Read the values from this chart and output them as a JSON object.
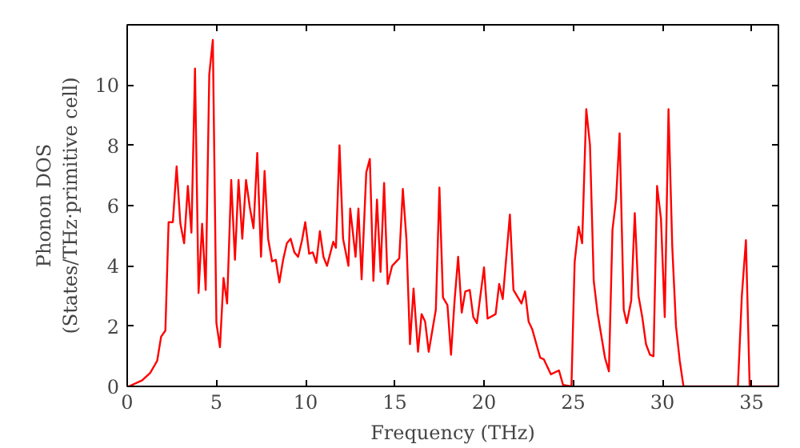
{
  "chart_data": {
    "type": "line",
    "xlabel": "Frequency (THz)",
    "ylabel": "Phonon DOS\n(States/THz·primitive cell)",
    "x": [
      0,
      0.09,
      0.84,
      1.29,
      1.68,
      1.9,
      2.14,
      2.32,
      2.56,
      2.77,
      2.98,
      3.19,
      3.4,
      3.6,
      3.8,
      4.0,
      4.2,
      4.4,
      4.6,
      4.8,
      5.0,
      5.2,
      5.4,
      5.6,
      5.83,
      6.04,
      6.24,
      6.45,
      6.66,
      6.87,
      7.08,
      7.29,
      7.5,
      7.7,
      7.9,
      8.12,
      8.33,
      8.53,
      8.74,
      8.95,
      9.16,
      9.37,
      9.58,
      9.8,
      9.98,
      10.2,
      10.4,
      10.6,
      10.8,
      11.0,
      11.2,
      11.55,
      11.7,
      11.9,
      12.1,
      12.4,
      12.5,
      12.8,
      12.96,
      13.14,
      13.4,
      13.6,
      13.8,
      14.0,
      14.2,
      14.4,
      14.6,
      14.85,
      15.25,
      15.45,
      15.65,
      15.85,
      16.05,
      16.3,
      16.5,
      16.7,
      16.9,
      17.3,
      17.5,
      17.7,
      17.95,
      18.15,
      18.35,
      18.55,
      18.75,
      18.95,
      19.2,
      19.4,
      19.6,
      20.0,
      20.2,
      20.65,
      20.85,
      21.05,
      21.45,
      21.65,
      22.1,
      22.3,
      22.5,
      22.7,
      23.15,
      23.35,
      23.75,
      24.2,
      24.43,
      24.9,
      25.08,
      25.3,
      25.5,
      25.73,
      25.94,
      26.15,
      26.36,
      26.57,
      26.78,
      27.0,
      27.2,
      27.4,
      27.6,
      27.83,
      28.0,
      28.25,
      28.45,
      28.66,
      28.87,
      29.08,
      29.3,
      29.5,
      29.7,
      29.92,
      30.13,
      30.34,
      30.55,
      30.76,
      30.97,
      31.18,
      34.23,
      34.45,
      34.68,
      34.89,
      36.5
    ],
    "series": [
      {
        "color": "#ff0000",
        "values": [
          0,
          0,
          0.2,
          0.45,
          0.85,
          1.65,
          1.85,
          5.45,
          5.45,
          7.3,
          5.4,
          4.75,
          6.65,
          5.1,
          10.55,
          3.1,
          5.4,
          3.2,
          10.35,
          11.5,
          2.1,
          1.3,
          3.6,
          2.75,
          6.85,
          4.2,
          6.85,
          4.9,
          6.85,
          5.95,
          5.25,
          7.75,
          4.3,
          7.15,
          4.9,
          4.15,
          4.2,
          3.45,
          4.2,
          4.75,
          4.9,
          4.45,
          4.3,
          4.85,
          5.45,
          4.4,
          4.45,
          4.1,
          5.15,
          4.3,
          4.0,
          4.8,
          4.6,
          8.0,
          4.9,
          4.0,
          5.9,
          4.3,
          5.9,
          3.55,
          7.1,
          7.55,
          3.5,
          6.2,
          3.8,
          6.75,
          3.4,
          4.0,
          4.25,
          6.55,
          4.9,
          1.4,
          3.25,
          1.15,
          2.4,
          2.15,
          1.15,
          2.55,
          6.6,
          2.95,
          2.7,
          1.05,
          2.85,
          4.3,
          2.45,
          3.15,
          3.2,
          2.3,
          2.1,
          3.95,
          2.25,
          2.4,
          3.4,
          2.9,
          5.7,
          3.2,
          2.75,
          3.15,
          2.15,
          1.9,
          0.95,
          0.9,
          0.4,
          0.53,
          0.05,
          0,
          4.13,
          5.3,
          4.75,
          9.2,
          8.0,
          3.5,
          2.45,
          1.7,
          0.95,
          0.5,
          5.2,
          6.2,
          8.4,
          2.55,
          2.1,
          2.85,
          5.75,
          3.0,
          2.3,
          1.4,
          1.05,
          1.0,
          6.65,
          5.55,
          2.3,
          9.2,
          4.65,
          2.0,
          0.85,
          0,
          0,
          3.0,
          4.85,
          0,
          0
        ]
      }
    ],
    "xlim": [
      0,
      36.5
    ],
    "ylim": [
      0,
      12
    ],
    "xticks": [
      0,
      5,
      10,
      15,
      20,
      25,
      30,
      35
    ],
    "yticks": [
      0,
      2,
      4,
      6,
      8,
      10
    ],
    "grid": false
  }
}
